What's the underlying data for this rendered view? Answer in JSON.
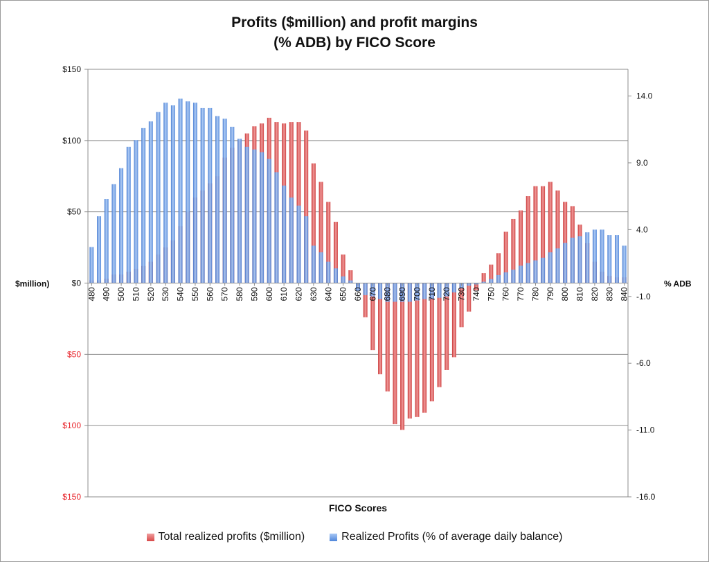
{
  "chart_data": {
    "type": "bar",
    "title_line1": "Profits ($million) and profit margins",
    "title_line2": "(% ADB) by FICO Score",
    "xlabel": "FICO Scores",
    "ylabel_left": "$million)",
    "ylabel_right": "% ADB",
    "x": [
      480,
      485,
      490,
      495,
      500,
      505,
      510,
      515,
      520,
      525,
      530,
      535,
      540,
      545,
      550,
      555,
      560,
      565,
      570,
      575,
      580,
      585,
      590,
      595,
      600,
      605,
      610,
      615,
      620,
      625,
      630,
      635,
      640,
      645,
      650,
      655,
      660,
      665,
      670,
      675,
      680,
      685,
      690,
      695,
      700,
      705,
      710,
      715,
      720,
      725,
      730,
      735,
      740,
      745,
      750,
      755,
      760,
      765,
      770,
      775,
      780,
      785,
      790,
      795,
      800,
      805,
      810,
      815,
      820,
      825,
      830,
      835,
      840
    ],
    "x_tick_labels": [
      "480",
      "490",
      "500",
      "510",
      "520",
      "530",
      "540",
      "550",
      "560",
      "570",
      "580",
      "590",
      "600",
      "610",
      "620",
      "630",
      "640",
      "650",
      "660",
      "670",
      "680",
      "690",
      "700",
      "710",
      "720",
      "730",
      "740",
      "750",
      "760",
      "770",
      "780",
      "790",
      "800",
      "810",
      "820",
      "830",
      "840"
    ],
    "left_axis": {
      "ylim": [
        -150,
        150
      ],
      "ticks": [
        150,
        100,
        50,
        0,
        -50,
        -100,
        -150
      ],
      "tick_labels": [
        "$150",
        "$100",
        "$50",
        "$0",
        "$50",
        "$100",
        "$150"
      ],
      "negative_label_color": "#e8232a"
    },
    "right_axis": {
      "ylim": [
        -16,
        16
      ],
      "ticks": [
        14,
        9,
        4,
        -1,
        -6,
        -11,
        -16
      ],
      "tick_labels": [
        "14.0",
        "9.0",
        "4.0",
        "-1.0",
        "-6.0",
        "-11.0",
        "-16.0"
      ]
    },
    "series": [
      {
        "name": "Total realized profits ($million)",
        "axis": "left",
        "color": "#e26666",
        "values": [
          2,
          2,
          3,
          6,
          6,
          8,
          10,
          12,
          15,
          20,
          25,
          30,
          40,
          50,
          60,
          65,
          70,
          75,
          88,
          95,
          100,
          105,
          110,
          112,
          116,
          113,
          112,
          113,
          113,
          107,
          84,
          71,
          57,
          43,
          20,
          9,
          -5,
          -24,
          -47,
          -64,
          -76,
          -99,
          -103,
          -95,
          -94,
          -91,
          -83,
          -73,
          -61,
          -52,
          -31,
          -20,
          -5,
          7,
          13,
          21,
          36,
          45,
          51,
          61,
          68,
          68,
          71,
          65,
          57,
          54,
          41,
          28,
          15,
          8,
          5,
          4,
          4
        ]
      },
      {
        "name": "Realized Profits (% of average daily balance)",
        "axis": "right",
        "color": "#6fa0e8",
        "values": [
          2.7,
          5.0,
          6.3,
          7.4,
          8.6,
          10.2,
          10.7,
          11.6,
          12.1,
          12.8,
          13.5,
          13.3,
          13.8,
          13.6,
          13.5,
          13.1,
          13.1,
          12.5,
          12.3,
          11.7,
          10.8,
          10.2,
          10.0,
          9.8,
          9.3,
          8.3,
          7.3,
          6.4,
          5.8,
          5.0,
          2.8,
          2.3,
          1.6,
          1.1,
          0.5,
          0.2,
          -0.6,
          -0.9,
          -1.0,
          -1.2,
          -1.4,
          -1.4,
          -1.4,
          -1.4,
          -1.3,
          -1.2,
          -1.2,
          -1.1,
          -1.0,
          -0.7,
          -0.4,
          -0.2,
          -0.1,
          0.1,
          0.3,
          0.6,
          0.8,
          1.0,
          1.3,
          1.5,
          1.7,
          1.9,
          2.3,
          2.6,
          3.0,
          3.4,
          3.5,
          3.8,
          4.0,
          4.0,
          3.6,
          3.6,
          2.8
        ]
      }
    ]
  }
}
